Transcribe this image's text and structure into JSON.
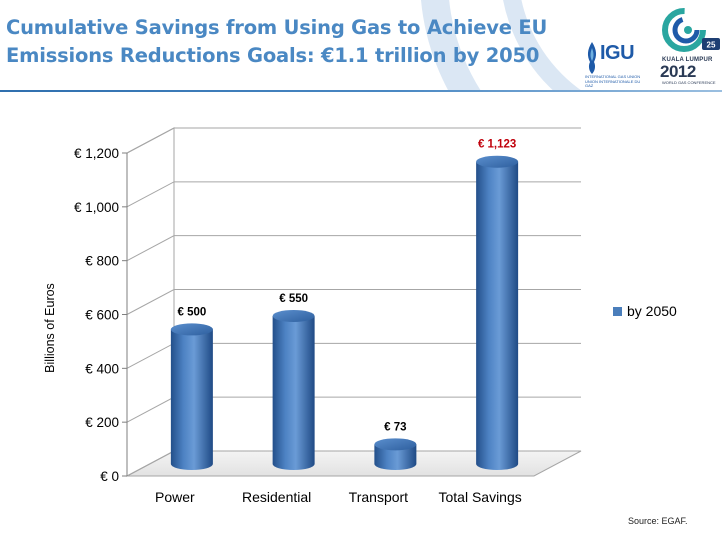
{
  "header": {
    "title_line1": "Cumulative Savings from Using Gas to Achieve EU",
    "title_line2": "Emissions Reductions Goals: €1.1 trillion by 2050",
    "title_color": "#4a88c3",
    "logo_left": {
      "text": "IGU",
      "subtext": "INTERNATIONAL GAS UNION UNION INTERNATIONALE DU GAZ"
    },
    "logo_right": {
      "city": "KUALA LUMPUR",
      "year": "2012",
      "event": "WORLD GAS CONFERENCE",
      "badge": "25"
    }
  },
  "chart_data": {
    "type": "bar",
    "style": "3d-cylinder",
    "categories": [
      "Power",
      "Residential",
      "Transport",
      "Total Savings"
    ],
    "series": [
      {
        "name": "by 2050",
        "values": [
          500,
          550,
          73,
          1123
        ],
        "color": "#4a7ebb"
      }
    ],
    "data_labels": [
      "€ 500",
      "€ 550",
      "€ 73",
      "€ 1,123"
    ],
    "highlight_label_color": "#c0000b",
    "ylabel": "Billions of Euros",
    "ylim": [
      0,
      1200
    ],
    "yticks": [
      0,
      200,
      400,
      600,
      800,
      1000,
      1200
    ],
    "ytick_labels": [
      "€ 0",
      "€ 200",
      "€ 400",
      "€ 600",
      "€ 800",
      "€ 1,000",
      "€ 1,200"
    ],
    "grid": true,
    "legend_position": "right"
  },
  "footer": {
    "source": "Source: EGAF."
  }
}
